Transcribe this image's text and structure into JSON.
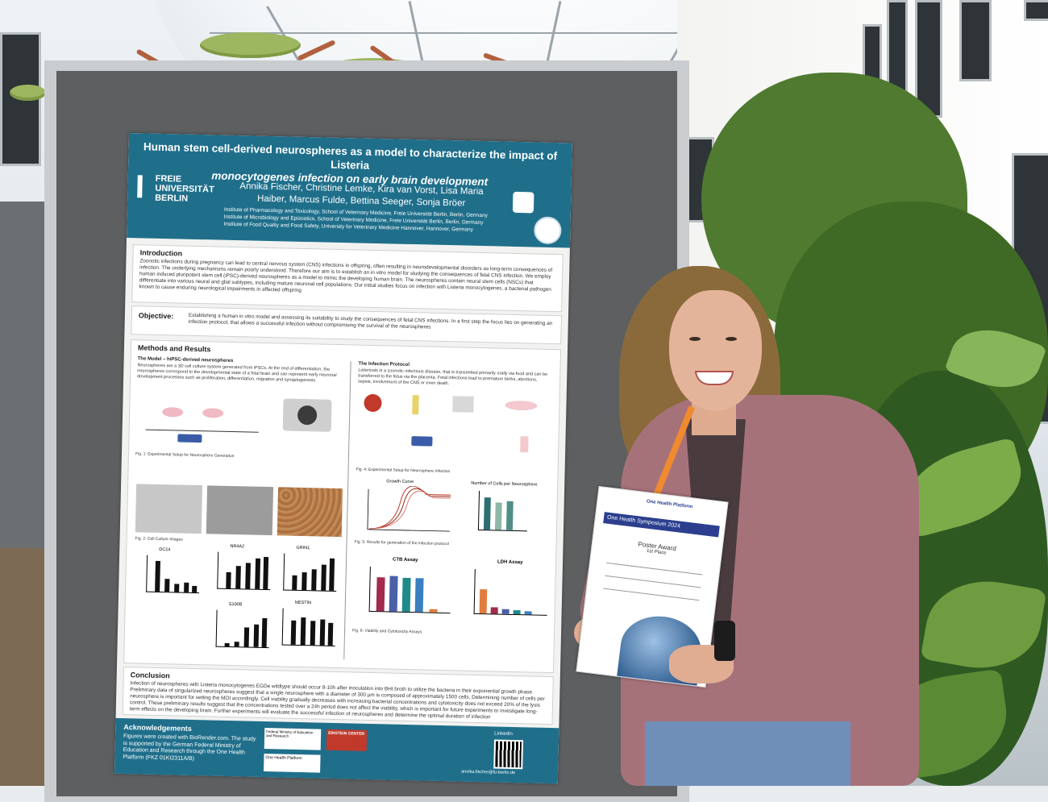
{
  "poster": {
    "title_line1": "Human stem cell-derived neurospheres as a model to characterize the impact of Listeria",
    "title_line2": "monocytogenes infection on early brain development",
    "university": "FREIE UNIVERSITÄT BERLIN",
    "authors": "Annika Fischer, Christine Lemke, Kira van Vorst, Lisa Maria Haiber, Marcus Fulde, Bettina Seeger, Sonja Bröer",
    "affiliations": [
      "Institute of Pharmacology and Toxicology, School of Veterinary Medicine, Freie Universität Berlin, Berlin, Germany",
      "Institute of Microbiology and Epizootics, School of Veterinary Medicine, Freie Universität Berlin, Berlin, Germany",
      "Institute of Food Quality and Food Safety, University for Veterinary Medicine Hannover, Hannover, Germany"
    ],
    "introduction": {
      "heading": "Introduction",
      "text": "Zoonotic infections during pregnancy can lead to central nervous system (CNS) infections in offspring, often resulting in neurodevelopmental disorders as long-term consequences of infection. The underlying mechanisms remain poorly understood. Therefore our aim is to establish an in vitro model for studying the consequences of fetal CNS infection. We employ human induced pluripotent stem cell (iPSC)-derived neurospheres as a model to mimic the developing human brain. The neurospheres contain neural stem cells (NSCs) that differentiate into various neural and glial subtypes, including mature neuronal cell populations. Our initial studies focus on infection with Listeria monocytogenes, a bacterial pathogen known to cause enduring neurological impairments in affected offspring"
    },
    "objective": {
      "heading": "Objective:",
      "text": "Establishing a human in vitro model and assessing its suitability to study the consequences of fetal CNS infections. In a first step the focus lies on generating an infection protocol, that allows a successful infection without compromising the survival of the neurospheres"
    },
    "methods": {
      "heading": "Methods and Results",
      "model_heading": "The Model – hiPSC-derived neurospheres",
      "model_text": "Neurospheres are a 3D cell culture system generated from iPSCs. At the end of differentiation, the neurospheres correspond to the developmental state of a fetal brain and can represent early neuronal development processes such as proliferation, differentiation, migration and synaptogenesis.",
      "protocol_heading": "The Infection Protocol",
      "protocol_text": "Listeriosis is a zoonotic infectious disease, that is transmitted primarily orally via food and can be transferred to the fetus via the placenta. Fetal infections lead to premature births, abortions, sepsis, involvement of the CNS or even death.",
      "fig1": "Fig. 1: Experimental Setup for Neurosphere Generation",
      "fig2": "Fig. 2: Cell Culture Images",
      "fig4": "Fig. 4: Experimental Setup for Neurosphere Infection",
      "fig5": "Fig. 5: Results for generation of the infection protocol",
      "fig6": "Fig. 6: Viability and Cytotoxicity Assays",
      "gene_labels": [
        "DC14",
        "NR4A2",
        "GRIN1",
        "S100B",
        "NESTIN"
      ],
      "growth_curve": "Growth Curve",
      "cells_per_neurosphere": "Number of Cells per Neurosphere",
      "ctb_assay": "CTB Assay",
      "ldh_assay": "LDH Assay"
    },
    "conclusion": {
      "heading": "Conclusion",
      "text": "Infection of neurospheres with Listeria monocytogenes EGDe wildtype should occur 8-10h after inoculation into BHI broth to utilize the bacteria in their exponential growth phase. Preliminary data of singularized neurospheres suggest that a single neurosphere with a diameter of 300 µm is composed of approximately 1500 cells. Determining number of cells per neurosphere is important for setting the MOI accordingly. Cell viability gradually decreases with increasing bacterial concentrations and cytotoxicity does not exceed 20% of the lysis control. These preliminary results suggest that the concentrations tested over a 24h period does not affect the viability, which is important for future experiments to investigate long-term effects on the developing brain. Further experiments will evaluate the successful infection of neurospheres and determine the optimal duration of infection"
    },
    "acknowledgements": {
      "heading": "Acknowledgements",
      "text": "Figures were created with BioRender.com. The study is supported by the German Federal Ministry of Education and Research through the One Health Platform (FKZ 01KI2311A/B)",
      "logos": [
        "Federal Ministry of Education and Research",
        "EINSTEIN CENTER",
        "One Health Platform"
      ],
      "contact": "annika.fischer@fu-berlin.de",
      "linkedin": "LinkedIn"
    }
  },
  "certificate": {
    "logo_text": "One Health Platform",
    "banner": "One Health Symposium 2024",
    "title": "Poster Award",
    "place": "1st Place"
  },
  "colors": {
    "poster_header": "#1f6f8b",
    "cardigan": "#a6727a",
    "lanyard": "#f08a2f"
  }
}
